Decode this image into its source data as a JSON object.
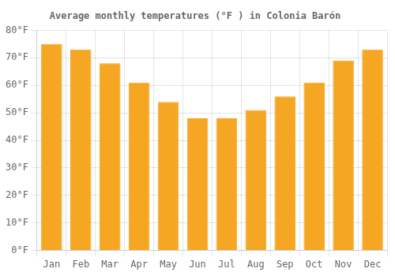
{
  "chart_data": {
    "type": "bar",
    "title": "Average monthly temperatures (°F ) in Colonia Barón",
    "categories": [
      "Jan",
      "Feb",
      "Mar",
      "Apr",
      "May",
      "Jun",
      "Jul",
      "Aug",
      "Sep",
      "Oct",
      "Nov",
      "Dec"
    ],
    "values": [
      75,
      73,
      68,
      61,
      54,
      48,
      48,
      51,
      56,
      61,
      69,
      73
    ],
    "color": "#F5A623",
    "ylim": [
      0,
      80
    ],
    "yticks": [
      {
        "value": 0,
        "label": "0°F"
      },
      {
        "value": 10,
        "label": "10°F"
      },
      {
        "value": 20,
        "label": "20°F"
      },
      {
        "value": 30,
        "label": "30°F"
      },
      {
        "value": 40,
        "label": "40°F"
      },
      {
        "value": 50,
        "label": "50°F"
      },
      {
        "value": 60,
        "label": "60°F"
      },
      {
        "value": 70,
        "label": "70°F"
      },
      {
        "value": 80,
        "label": "80°F"
      }
    ],
    "grid": true
  }
}
